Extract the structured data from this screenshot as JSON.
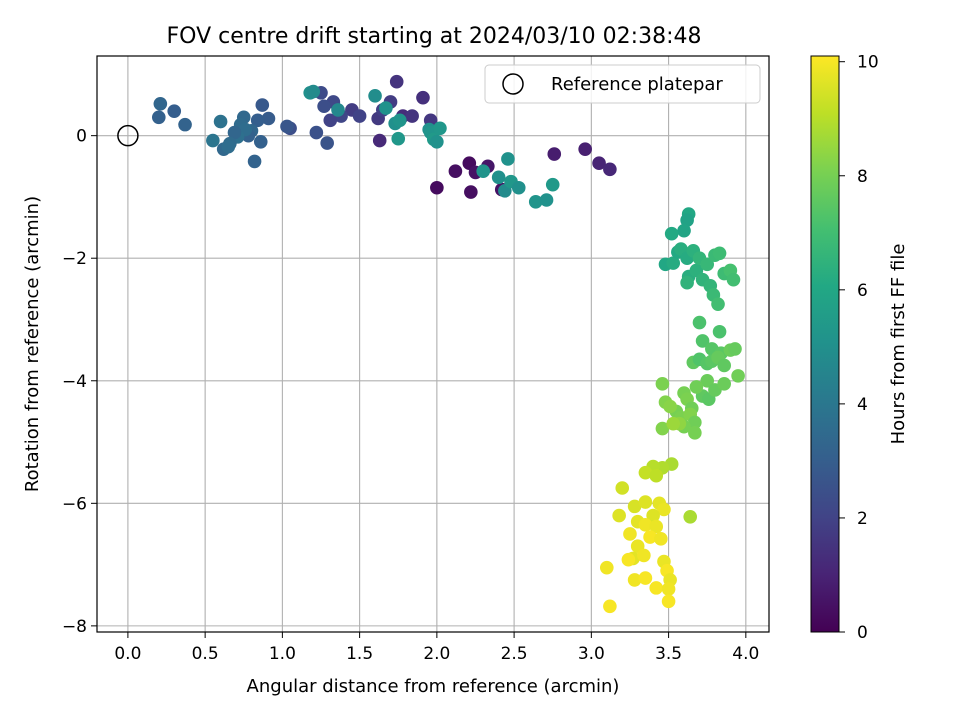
{
  "chart_data": {
    "type": "scatter",
    "title": "FOV centre drift starting at 2024/03/10 02:38:48",
    "xlabel": "Angular distance from reference (arcmin)",
    "ylabel": "Rotation from reference (arcmin)",
    "xlim": [
      -0.2,
      4.15
    ],
    "ylim": [
      -8.1,
      1.3
    ],
    "xticks": [
      0.0,
      0.5,
      1.0,
      1.5,
      2.0,
      2.5,
      3.0,
      3.5,
      4.0
    ],
    "xtick_labels": [
      "0.0",
      "0.5",
      "1.0",
      "1.5",
      "2.0",
      "2.5",
      "3.0",
      "3.5",
      "4.0"
    ],
    "yticks": [
      0,
      -2,
      -4,
      -6,
      -8
    ],
    "ytick_labels": [
      "0",
      "−2",
      "−4",
      "−6",
      "−8"
    ],
    "grid": true,
    "legend": {
      "label": "Reference platepar",
      "position": "top-right"
    },
    "reference_point": {
      "x": 0.0,
      "y": 0.0
    },
    "colorbar": {
      "label": "Hours from first FF file",
      "range": [
        0,
        10.1
      ],
      "ticks": [
        0,
        2,
        4,
        6,
        8,
        10
      ],
      "tick_labels": [
        "0",
        "2",
        "4",
        "6",
        "8",
        "10"
      ],
      "colormap": "viridis"
    },
    "points": [
      [
        2.0,
        -0.85,
        0.3
      ],
      [
        2.12,
        -0.58,
        0.4
      ],
      [
        2.21,
        -0.45,
        0.3
      ],
      [
        2.25,
        -0.6,
        0.5
      ],
      [
        2.22,
        -0.92,
        0.4
      ],
      [
        2.33,
        -0.5,
        0.6
      ],
      [
        2.42,
        -0.88,
        0.5
      ],
      [
        2.76,
        -0.3,
        0.8
      ],
      [
        2.96,
        -0.22,
        0.9
      ],
      [
        3.05,
        -0.45,
        1.0
      ],
      [
        3.12,
        -0.55,
        1.1
      ],
      [
        1.63,
        -0.08,
        1.2
      ],
      [
        1.78,
        0.32,
        1.3
      ],
      [
        1.84,
        0.32,
        1.5
      ],
      [
        1.91,
        0.62,
        1.4
      ],
      [
        1.74,
        0.88,
        1.5
      ],
      [
        1.96,
        0.25,
        1.6
      ],
      [
        1.62,
        0.28,
        1.7
      ],
      [
        1.65,
        0.42,
        1.9
      ],
      [
        1.7,
        0.55,
        1.8
      ],
      [
        1.45,
        0.42,
        1.8
      ],
      [
        1.5,
        0.32,
        2.0
      ],
      [
        1.38,
        0.32,
        2.1
      ],
      [
        1.33,
        0.55,
        2.2
      ],
      [
        1.31,
        0.25,
        2.0
      ],
      [
        1.25,
        0.7,
        2.3
      ],
      [
        1.27,
        0.48,
        2.4
      ],
      [
        1.22,
        0.05,
        2.5
      ],
      [
        1.29,
        -0.12,
        2.6
      ],
      [
        1.05,
        0.12,
        2.4
      ],
      [
        1.03,
        0.15,
        2.7
      ],
      [
        0.87,
        0.5,
        2.8
      ],
      [
        0.91,
        0.28,
        2.9
      ],
      [
        0.84,
        0.25,
        3.0
      ],
      [
        0.86,
        -0.1,
        3.1
      ],
      [
        0.82,
        -0.42,
        3.2
      ],
      [
        0.8,
        0.08,
        3.3
      ],
      [
        0.78,
        0.0,
        3.1
      ],
      [
        0.75,
        0.3,
        3.4
      ],
      [
        0.73,
        0.18,
        3.5
      ],
      [
        0.76,
        0.1,
        3.6
      ],
      [
        0.71,
        -0.02,
        3.7
      ],
      [
        0.69,
        0.05,
        3.3
      ],
      [
        0.66,
        -0.13,
        3.5
      ],
      [
        0.62,
        -0.22,
        3.4
      ],
      [
        0.65,
        -0.18,
        3.6
      ],
      [
        0.6,
        0.23,
        3.8
      ],
      [
        0.55,
        -0.08,
        3.9
      ],
      [
        0.37,
        0.18,
        3.2
      ],
      [
        0.3,
        0.4,
        3.0
      ],
      [
        0.21,
        0.52,
        3.3
      ],
      [
        0.2,
        0.3,
        3.1
      ],
      [
        1.18,
        0.7,
        5.0
      ],
      [
        1.2,
        0.72,
        4.8
      ],
      [
        1.36,
        0.42,
        4.7
      ],
      [
        1.6,
        0.65,
        4.9
      ],
      [
        1.67,
        0.45,
        5.1
      ],
      [
        1.73,
        0.2,
        5.0
      ],
      [
        1.76,
        0.25,
        5.2
      ],
      [
        1.75,
        -0.05,
        5.3
      ],
      [
        1.95,
        0.1,
        5.0
      ],
      [
        1.96,
        0.05,
        5.2
      ],
      [
        1.98,
        -0.06,
        5.4
      ],
      [
        2.0,
        -0.1,
        5.1
      ],
      [
        2.02,
        0.12,
        5.3
      ],
      [
        2.3,
        -0.58,
        5.2
      ],
      [
        2.4,
        -0.68,
        5.0
      ],
      [
        2.44,
        -0.9,
        4.8
      ],
      [
        2.46,
        -0.38,
        5.1
      ],
      [
        2.48,
        -0.75,
        5.3
      ],
      [
        2.53,
        -0.85,
        5.0
      ],
      [
        2.64,
        -1.08,
        5.2
      ],
      [
        2.71,
        -1.05,
        5.1
      ],
      [
        2.75,
        -0.8,
        5.4
      ],
      [
        3.63,
        -1.28,
        6.0
      ],
      [
        3.62,
        -1.38,
        5.8
      ],
      [
        3.6,
        -1.55,
        5.9
      ],
      [
        3.52,
        -1.6,
        6.1
      ],
      [
        3.48,
        -2.1,
        6.0
      ],
      [
        3.53,
        -2.08,
        6.2
      ],
      [
        3.56,
        -1.9,
        6.1
      ],
      [
        3.58,
        -1.85,
        6.3
      ],
      [
        3.62,
        -2.0,
        6.2
      ],
      [
        3.66,
        -1.88,
        6.4
      ],
      [
        3.63,
        -2.3,
        6.3
      ],
      [
        3.62,
        -2.4,
        6.5
      ],
      [
        3.68,
        -2.2,
        6.4
      ],
      [
        3.7,
        -2.0,
        6.6
      ],
      [
        3.72,
        -2.35,
        6.5
      ],
      [
        3.75,
        -2.1,
        6.7
      ],
      [
        3.77,
        -2.45,
        6.6
      ],
      [
        3.8,
        -1.95,
        6.8
      ],
      [
        3.83,
        -1.92,
        6.9
      ],
      [
        3.79,
        -2.6,
        6.8
      ],
      [
        3.82,
        -2.75,
        7.0
      ],
      [
        3.86,
        -2.25,
        6.9
      ],
      [
        3.9,
        -2.2,
        7.1
      ],
      [
        3.92,
        -2.35,
        7.0
      ],
      [
        3.7,
        -3.05,
        7.2
      ],
      [
        3.72,
        -3.35,
        7.3
      ],
      [
        3.78,
        -3.48,
        7.4
      ],
      [
        3.83,
        -3.2,
        7.2
      ],
      [
        3.84,
        -3.55,
        7.5
      ],
      [
        3.66,
        -3.7,
        7.6
      ],
      [
        3.7,
        -3.65,
        7.3
      ],
      [
        3.75,
        -3.72,
        7.4
      ],
      [
        3.78,
        -3.68,
        7.5
      ],
      [
        3.82,
        -3.62,
        7.7
      ],
      [
        3.86,
        -3.75,
        7.6
      ],
      [
        3.9,
        -3.5,
        7.8
      ],
      [
        3.93,
        -3.48,
        7.7
      ],
      [
        3.95,
        -3.92,
        7.9
      ],
      [
        3.75,
        -4.0,
        7.8
      ],
      [
        3.72,
        -4.25,
        7.6
      ],
      [
        3.76,
        -4.3,
        7.5
      ],
      [
        3.8,
        -4.15,
        7.7
      ],
      [
        3.86,
        -4.05,
        7.8
      ],
      [
        3.68,
        -4.1,
        7.9
      ],
      [
        3.6,
        -4.2,
        8.0
      ],
      [
        3.62,
        -4.3,
        8.1
      ],
      [
        3.65,
        -4.45,
        7.9
      ],
      [
        3.55,
        -4.5,
        8.0
      ],
      [
        3.58,
        -4.6,
        8.1
      ],
      [
        3.64,
        -4.55,
        8.2
      ],
      [
        3.67,
        -4.68,
        7.9
      ],
      [
        3.6,
        -4.75,
        8.0
      ],
      [
        3.46,
        -4.05,
        8.1
      ],
      [
        3.48,
        -4.35,
        8.2
      ],
      [
        3.51,
        -4.42,
        8.3
      ],
      [
        3.57,
        -4.7,
        8.4
      ],
      [
        3.46,
        -4.78,
        8.2
      ],
      [
        3.67,
        -4.85,
        8.0
      ],
      [
        3.53,
        -4.7,
        8.6
      ],
      [
        3.52,
        -5.36,
        8.8
      ],
      [
        3.46,
        -5.42,
        8.9
      ],
      [
        3.4,
        -5.4,
        9.0
      ],
      [
        3.35,
        -5.5,
        9.2
      ],
      [
        3.42,
        -5.55,
        9.1
      ],
      [
        3.64,
        -6.22,
        8.8
      ],
      [
        3.2,
        -5.75,
        9.4
      ],
      [
        3.28,
        -6.05,
        9.5
      ],
      [
        3.35,
        -5.98,
        9.6
      ],
      [
        3.44,
        -6.0,
        9.7
      ],
      [
        3.47,
        -6.1,
        9.8
      ],
      [
        3.4,
        -6.2,
        9.6
      ],
      [
        3.3,
        -6.3,
        9.7
      ],
      [
        3.35,
        -6.35,
        9.9
      ],
      [
        3.42,
        -6.38,
        9.8
      ],
      [
        3.18,
        -6.2,
        9.6
      ],
      [
        3.25,
        -6.5,
        9.9
      ],
      [
        3.38,
        -6.55,
        10.0
      ],
      [
        3.45,
        -6.58,
        9.9
      ],
      [
        3.3,
        -6.7,
        9.8
      ],
      [
        3.27,
        -6.9,
        9.7
      ],
      [
        3.34,
        -6.85,
        9.9
      ],
      [
        3.24,
        -6.92,
        10.0
      ],
      [
        3.47,
        -6.95,
        9.8
      ],
      [
        3.1,
        -7.05,
        9.9
      ],
      [
        3.49,
        -7.1,
        10.0
      ],
      [
        3.28,
        -7.25,
        9.9
      ],
      [
        3.35,
        -7.22,
        10.0
      ],
      [
        3.51,
        -7.25,
        9.8
      ],
      [
        3.42,
        -7.38,
        10.0
      ],
      [
        3.5,
        -7.4,
        9.9
      ],
      [
        3.5,
        -7.6,
        10.0
      ],
      [
        3.12,
        -7.68,
        10.0
      ]
    ]
  }
}
